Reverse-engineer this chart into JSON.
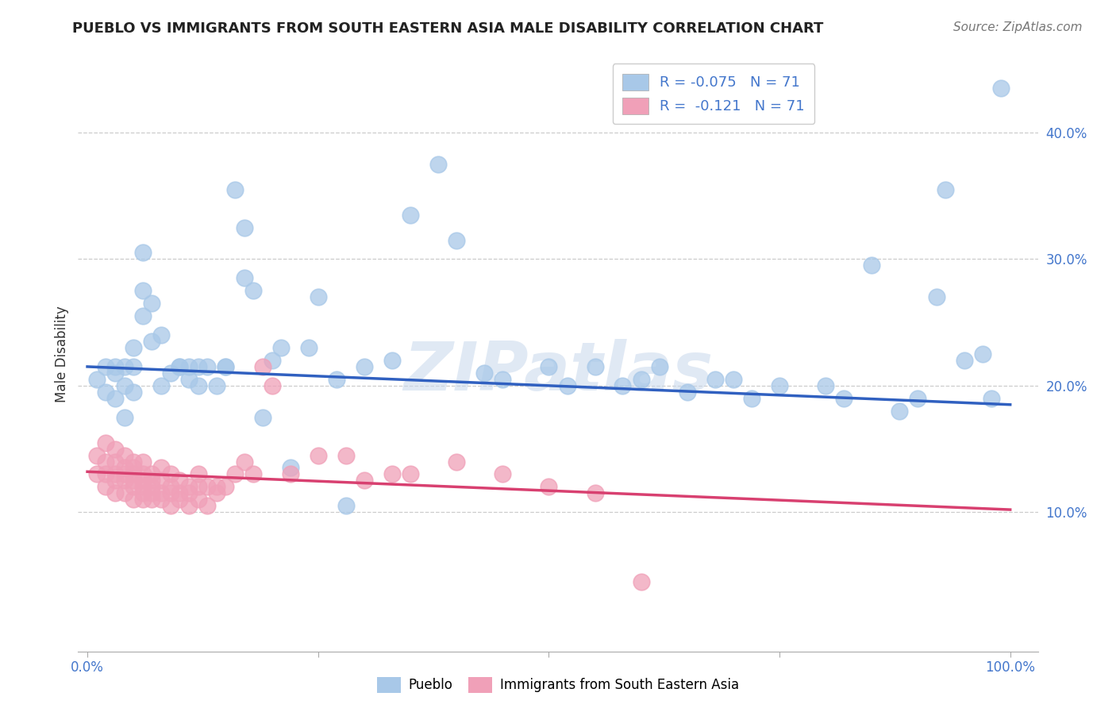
{
  "title": "PUEBLO VS IMMIGRANTS FROM SOUTH EASTERN ASIA MALE DISABILITY CORRELATION CHART",
  "source": "Source: ZipAtlas.com",
  "ylabel": "Male Disability",
  "watermark": "ZIPatlas",
  "legend_r_blue": "R = -0.075",
  "legend_n_blue": "N = 71",
  "legend_r_pink": "R =  -0.121",
  "legend_n_pink": "N = 71",
  "xlim": [
    -0.01,
    1.03
  ],
  "ylim": [
    -0.01,
    0.46
  ],
  "blue_color": "#a8c8e8",
  "pink_color": "#f0a0b8",
  "blue_line_color": "#3060c0",
  "pink_line_color": "#d84070",
  "grid_color": "#cccccc",
  "background_color": "#ffffff",
  "blue_x": [
    0.01,
    0.02,
    0.02,
    0.03,
    0.03,
    0.03,
    0.04,
    0.04,
    0.04,
    0.05,
    0.05,
    0.05,
    0.06,
    0.06,
    0.06,
    0.07,
    0.07,
    0.08,
    0.08,
    0.09,
    0.1,
    0.1,
    0.11,
    0.11,
    0.12,
    0.12,
    0.13,
    0.14,
    0.15,
    0.15,
    0.16,
    0.17,
    0.17,
    0.18,
    0.19,
    0.2,
    0.21,
    0.22,
    0.24,
    0.25,
    0.27,
    0.28,
    0.3,
    0.33,
    0.35,
    0.38,
    0.4,
    0.43,
    0.45,
    0.5,
    0.52,
    0.55,
    0.58,
    0.6,
    0.62,
    0.65,
    0.68,
    0.7,
    0.72,
    0.75,
    0.8,
    0.82,
    0.85,
    0.88,
    0.9,
    0.92,
    0.93,
    0.95,
    0.97,
    0.98,
    0.99
  ],
  "blue_y": [
    0.205,
    0.215,
    0.195,
    0.21,
    0.19,
    0.215,
    0.175,
    0.2,
    0.215,
    0.195,
    0.215,
    0.23,
    0.255,
    0.275,
    0.305,
    0.235,
    0.265,
    0.2,
    0.24,
    0.21,
    0.215,
    0.215,
    0.205,
    0.215,
    0.2,
    0.215,
    0.215,
    0.2,
    0.215,
    0.215,
    0.355,
    0.285,
    0.325,
    0.275,
    0.175,
    0.22,
    0.23,
    0.135,
    0.23,
    0.27,
    0.205,
    0.105,
    0.215,
    0.22,
    0.335,
    0.375,
    0.315,
    0.21,
    0.205,
    0.215,
    0.2,
    0.215,
    0.2,
    0.205,
    0.215,
    0.195,
    0.205,
    0.205,
    0.19,
    0.2,
    0.2,
    0.19,
    0.295,
    0.18,
    0.19,
    0.27,
    0.355,
    0.22,
    0.225,
    0.19,
    0.435
  ],
  "pink_x": [
    0.01,
    0.01,
    0.02,
    0.02,
    0.02,
    0.02,
    0.03,
    0.03,
    0.03,
    0.03,
    0.03,
    0.04,
    0.04,
    0.04,
    0.04,
    0.04,
    0.05,
    0.05,
    0.05,
    0.05,
    0.05,
    0.05,
    0.06,
    0.06,
    0.06,
    0.06,
    0.06,
    0.06,
    0.07,
    0.07,
    0.07,
    0.07,
    0.07,
    0.08,
    0.08,
    0.08,
    0.08,
    0.09,
    0.09,
    0.09,
    0.09,
    0.1,
    0.1,
    0.1,
    0.11,
    0.11,
    0.11,
    0.12,
    0.12,
    0.12,
    0.13,
    0.13,
    0.14,
    0.14,
    0.15,
    0.16,
    0.17,
    0.18,
    0.19,
    0.2,
    0.22,
    0.25,
    0.28,
    0.3,
    0.33,
    0.35,
    0.4,
    0.45,
    0.5,
    0.55,
    0.6
  ],
  "pink_y": [
    0.13,
    0.145,
    0.12,
    0.13,
    0.14,
    0.155,
    0.115,
    0.125,
    0.13,
    0.14,
    0.15,
    0.115,
    0.125,
    0.13,
    0.135,
    0.145,
    0.11,
    0.12,
    0.125,
    0.13,
    0.135,
    0.14,
    0.11,
    0.115,
    0.12,
    0.125,
    0.13,
    0.14,
    0.11,
    0.115,
    0.12,
    0.125,
    0.13,
    0.11,
    0.115,
    0.125,
    0.135,
    0.105,
    0.115,
    0.12,
    0.13,
    0.11,
    0.115,
    0.125,
    0.105,
    0.115,
    0.12,
    0.11,
    0.12,
    0.13,
    0.105,
    0.12,
    0.115,
    0.12,
    0.12,
    0.13,
    0.14,
    0.13,
    0.215,
    0.2,
    0.13,
    0.145,
    0.145,
    0.125,
    0.13,
    0.13,
    0.14,
    0.13,
    0.12,
    0.115,
    0.045
  ],
  "blue_line": [
    0.215,
    0.185
  ],
  "pink_line": [
    0.132,
    0.102
  ],
  "ytick_positions": [
    0.1,
    0.2,
    0.3,
    0.4
  ],
  "ytick_labels": [
    "10.0%",
    "20.0%",
    "30.0%",
    "40.0%"
  ],
  "grid_yticks": [
    0.1,
    0.2,
    0.3,
    0.4
  ]
}
